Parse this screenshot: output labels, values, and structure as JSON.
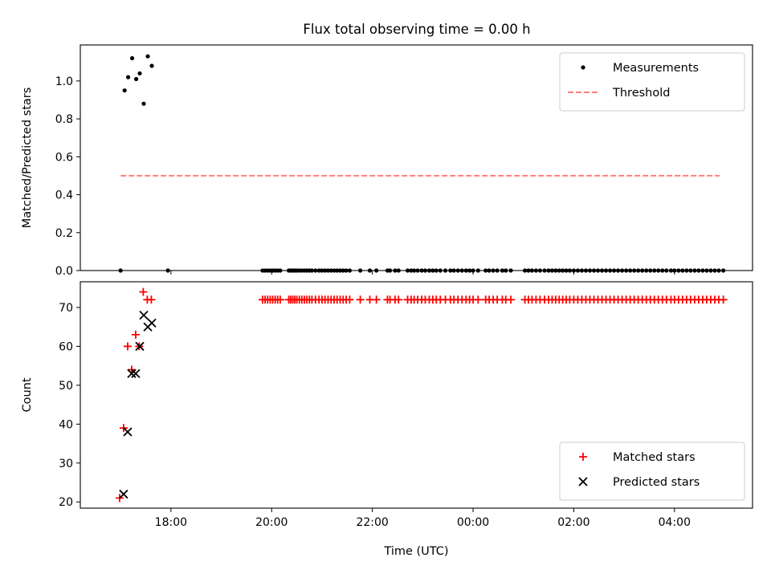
{
  "figure": {
    "title": "Flux total observing time = 0.00 h"
  },
  "chart_data": [
    {
      "type": "scatter",
      "panel": "top",
      "title": "Flux total observing time = 0.00 h",
      "xlabel": "",
      "ylabel": "Matched/Predicted stars",
      "xlim": [
        16.2,
        29.55
      ],
      "ylim": [
        0.0,
        1.19
      ],
      "xticks": [
        18,
        20,
        22,
        24,
        26,
        28
      ],
      "xtick_labels": [
        "18:00",
        "20:00",
        "22:00",
        "00:00",
        "02:00",
        "04:00"
      ],
      "show_xtick_labels": false,
      "yticks": [
        0.0,
        0.2,
        0.4,
        0.6,
        0.8,
        1.0
      ],
      "ytick_labels": [
        "0.0",
        "0.2",
        "0.4",
        "0.6",
        "0.8",
        "1.0"
      ],
      "legend": {
        "placement": "top-right",
        "entries": [
          {
            "label": "Measurements",
            "marker": "dot",
            "color": "#000000"
          },
          {
            "label": "Threshold",
            "marker": "dashed-line",
            "color": "#ff7f7f"
          }
        ]
      },
      "series": [
        {
          "name": "Measurements",
          "marker": "dot",
          "color": "#000000",
          "x": [
            17.0,
            17.08,
            17.15,
            17.23,
            17.31,
            17.38,
            17.46,
            17.54,
            17.62,
            17.94,
            19.82,
            19.87,
            19.92,
            19.97,
            20.02,
            20.07,
            20.12,
            20.17,
            20.34,
            20.38,
            20.42,
            20.46,
            20.5,
            20.55,
            20.6,
            20.65,
            20.7,
            20.75,
            20.8,
            20.87,
            20.94,
            21.0,
            21.06,
            21.12,
            21.18,
            21.24,
            21.3,
            21.36,
            21.42,
            21.48,
            21.55,
            21.76,
            21.95,
            22.08,
            22.3,
            22.35,
            22.45,
            22.52,
            22.7,
            22.77,
            22.83,
            22.9,
            22.98,
            23.05,
            23.13,
            23.2,
            23.27,
            23.35,
            23.45,
            23.55,
            23.62,
            23.7,
            23.78,
            23.86,
            23.93,
            24.0,
            24.1,
            24.25,
            24.32,
            24.4,
            24.48,
            24.58,
            24.65,
            24.75,
            25.03,
            25.1,
            25.17,
            25.25,
            25.33,
            25.42,
            25.5,
            25.57,
            25.64,
            25.71,
            25.78,
            25.85,
            25.92,
            26.0,
            26.08,
            26.16,
            26.24,
            26.32,
            26.4,
            26.48,
            26.56,
            26.64,
            26.72,
            26.8,
            26.88,
            26.96,
            27.04,
            27.12,
            27.2,
            27.28,
            27.36,
            27.44,
            27.52,
            27.6,
            27.68,
            27.76,
            27.84,
            27.93,
            28.0,
            28.08,
            28.16,
            28.24,
            28.32,
            28.4,
            28.48,
            28.56,
            28.64,
            28.72,
            28.8,
            28.88,
            28.97
          ],
          "y": [
            0.0,
            0.95,
            1.02,
            1.12,
            1.01,
            1.04,
            0.88,
            1.13,
            1.08,
            0.0,
            0.0,
            0.0,
            0.0,
            0.0,
            0.0,
            0.0,
            0.0,
            0.0,
            0.0,
            0.0,
            0.0,
            0.0,
            0.0,
            0.0,
            0.0,
            0.0,
            0.0,
            0.0,
            0.0,
            0.0,
            0.0,
            0.0,
            0.0,
            0.0,
            0.0,
            0.0,
            0.0,
            0.0,
            0.0,
            0.0,
            0.0,
            0.0,
            0.0,
            0.0,
            0.0,
            0.0,
            0.0,
            0.0,
            0.0,
            0.0,
            0.0,
            0.0,
            0.0,
            0.0,
            0.0,
            0.0,
            0.0,
            0.0,
            0.0,
            0.0,
            0.0,
            0.0,
            0.0,
            0.0,
            0.0,
            0.0,
            0.0,
            0.0,
            0.0,
            0.0,
            0.0,
            0.0,
            0.0,
            0.0,
            0.0,
            0.0,
            0.0,
            0.0,
            0.0,
            0.0,
            0.0,
            0.0,
            0.0,
            0.0,
            0.0,
            0.0,
            0.0,
            0.0,
            0.0,
            0.0,
            0.0,
            0.0,
            0.0,
            0.0,
            0.0,
            0.0,
            0.0,
            0.0,
            0.0,
            0.0,
            0.0,
            0.0,
            0.0,
            0.0,
            0.0,
            0.0,
            0.0,
            0.0,
            0.0,
            0.0,
            0.0,
            0.0,
            0.0,
            0.0,
            0.0,
            0.0,
            0.0,
            0.0,
            0.0,
            0.0,
            0.0,
            0.0,
            0.0,
            0.0,
            0.0
          ]
        },
        {
          "name": "Threshold",
          "marker": "dashed-line",
          "color": "#ff7f7f",
          "x": [
            17.0,
            28.9
          ],
          "y": [
            0.5,
            0.5
          ]
        }
      ]
    },
    {
      "type": "scatter",
      "panel": "bottom",
      "title": "",
      "xlabel": "Time (UTC)",
      "ylabel": "Count",
      "xlim": [
        16.2,
        29.55
      ],
      "ylim": [
        18.4,
        76.6
      ],
      "xticks": [
        18,
        20,
        22,
        24,
        26,
        28
      ],
      "xtick_labels": [
        "18:00",
        "20:00",
        "22:00",
        "00:00",
        "02:00",
        "04:00"
      ],
      "show_xtick_labels": true,
      "yticks": [
        20,
        30,
        40,
        50,
        60,
        70
      ],
      "ytick_labels": [
        "20",
        "30",
        "40",
        "50",
        "60",
        "70"
      ],
      "legend": {
        "placement": "bottom-right",
        "entries": [
          {
            "label": "Matched stars",
            "marker": "plus",
            "color": "#ff0000"
          },
          {
            "label": "Predicted stars",
            "marker": "cross",
            "color": "#000000"
          }
        ]
      },
      "series": [
        {
          "name": "Matched stars",
          "marker": "plus",
          "color": "#ff0000",
          "x": [
            16.98,
            17.06,
            17.14,
            17.22,
            17.3,
            17.37,
            17.45,
            17.53,
            17.61,
            19.82,
            19.87,
            19.92,
            19.97,
            20.02,
            20.07,
            20.12,
            20.17,
            20.34,
            20.38,
            20.42,
            20.46,
            20.5,
            20.55,
            20.6,
            20.65,
            20.7,
            20.75,
            20.8,
            20.87,
            20.94,
            21.0,
            21.06,
            21.12,
            21.18,
            21.24,
            21.3,
            21.36,
            21.42,
            21.48,
            21.55,
            21.76,
            21.95,
            22.08,
            22.3,
            22.35,
            22.45,
            22.52,
            22.7,
            22.77,
            22.83,
            22.9,
            22.98,
            23.05,
            23.13,
            23.2,
            23.27,
            23.35,
            23.45,
            23.55,
            23.62,
            23.7,
            23.78,
            23.86,
            23.93,
            24.0,
            24.1,
            24.25,
            24.32,
            24.4,
            24.48,
            24.58,
            24.65,
            24.75,
            25.03,
            25.1,
            25.17,
            25.25,
            25.33,
            25.42,
            25.5,
            25.57,
            25.64,
            25.71,
            25.78,
            25.85,
            25.92,
            26.0,
            26.08,
            26.16,
            26.24,
            26.32,
            26.4,
            26.48,
            26.56,
            26.64,
            26.72,
            26.8,
            26.88,
            26.96,
            27.04,
            27.12,
            27.2,
            27.28,
            27.36,
            27.44,
            27.52,
            27.6,
            27.68,
            27.76,
            27.84,
            27.93,
            28.0,
            28.08,
            28.16,
            28.24,
            28.32,
            28.4,
            28.48,
            28.56,
            28.64,
            28.72,
            28.8,
            28.88,
            28.97
          ],
          "y": [
            21,
            39,
            60,
            54,
            63,
            60,
            74,
            72,
            72,
            72,
            72,
            72,
            72,
            72,
            72,
            72,
            72,
            72,
            72,
            72,
            72,
            72,
            72,
            72,
            72,
            72,
            72,
            72,
            72,
            72,
            72,
            72,
            72,
            72,
            72,
            72,
            72,
            72,
            72,
            72,
            72,
            72,
            72,
            72,
            72,
            72,
            72,
            72,
            72,
            72,
            72,
            72,
            72,
            72,
            72,
            72,
            72,
            72,
            72,
            72,
            72,
            72,
            72,
            72,
            72,
            72,
            72,
            72,
            72,
            72,
            72,
            72,
            72,
            72,
            72,
            72,
            72,
            72,
            72,
            72,
            72,
            72,
            72,
            72,
            72,
            72,
            72,
            72,
            72,
            72,
            72,
            72,
            72,
            72,
            72,
            72,
            72,
            72,
            72,
            72,
            72,
            72,
            72,
            72,
            72,
            72,
            72,
            72,
            72,
            72,
            72,
            72,
            72,
            72,
            72,
            72,
            72,
            72,
            72,
            72,
            72,
            72,
            72,
            72
          ]
        },
        {
          "name": "Predicted stars",
          "marker": "cross",
          "color": "#000000",
          "x": [
            17.06,
            17.14,
            17.22,
            17.3,
            17.38,
            17.46,
            17.54,
            17.62
          ],
          "y": [
            22,
            38,
            53,
            53,
            60,
            68,
            65,
            66
          ]
        }
      ]
    }
  ]
}
